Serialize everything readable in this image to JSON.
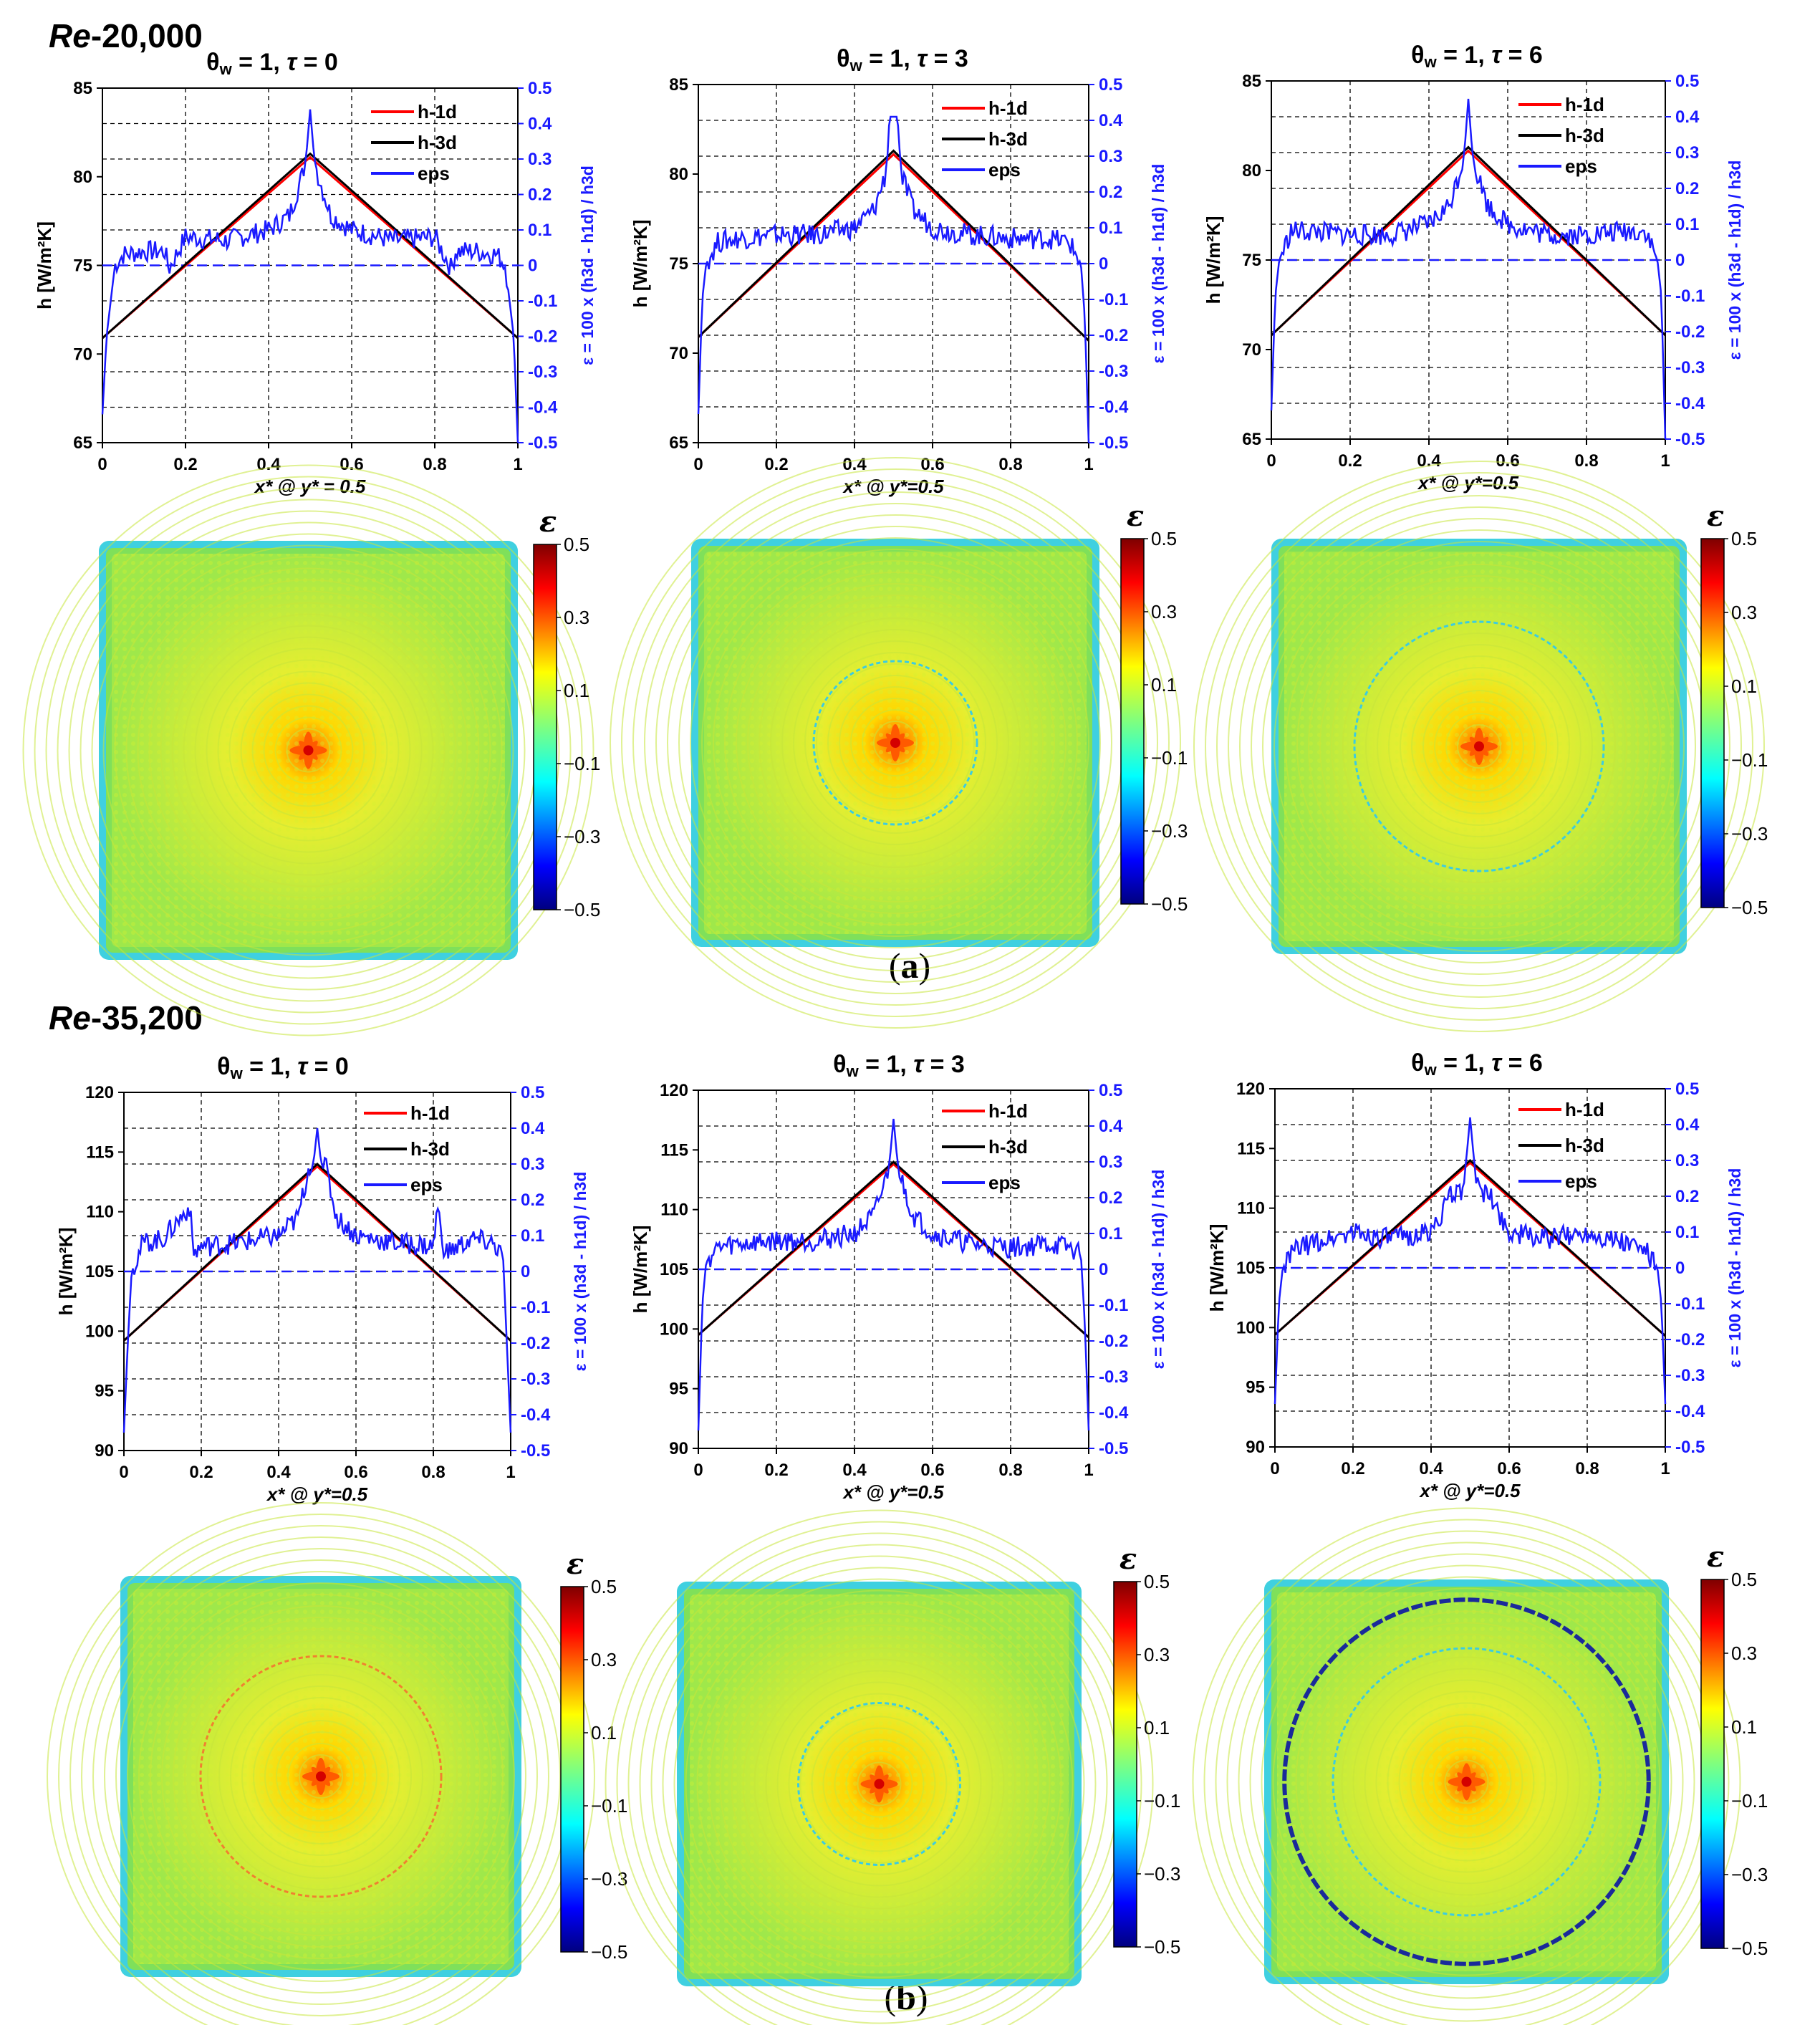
{
  "figure": {
    "section_a": {
      "re_prefix": "Re",
      "re_value": "-20,000",
      "caption_open": "(",
      "caption_letter": "a",
      "caption_close": ")"
    },
    "section_b": {
      "re_prefix": "Re",
      "re_value": "-35,200",
      "caption_open": "(",
      "caption_letter": "b",
      "caption_close": ")"
    }
  },
  "chart_data": [
    {
      "type": "line",
      "section": "a",
      "title": "θw = 1, τ = 0",
      "xlabel": "x* @ y* = 0.5",
      "ylabel": "h [W/m²K]",
      "y2label": "ε = 100 x (h3d - h1d) / h3d",
      "xlim": [
        0,
        1
      ],
      "ylim": [
        65,
        85
      ],
      "y2lim": [
        -0.5,
        0.5
      ],
      "xticks": [
        "0",
        "0.2",
        "0.4",
        "0.6",
        "0.8",
        "1"
      ],
      "yticks": [
        "65",
        "70",
        "75",
        "80",
        "85"
      ],
      "y2ticks": [
        "0.5",
        "0.4",
        "0.3",
        "0.2",
        "0.1",
        "0",
        "-0.1",
        "-0.2",
        "-0.3",
        "-0.4",
        "-0.5"
      ],
      "legend": [
        "h-1d",
        "h-3d",
        "eps"
      ],
      "series": [
        {
          "name": "h-1d",
          "x": [
            0,
            0.5,
            1
          ],
          "values": [
            70.9,
            81.1,
            70.9
          ]
        },
        {
          "name": "h-3d",
          "x": [
            0,
            0.5,
            1
          ],
          "values": [
            70.9,
            81.3,
            70.9
          ]
        },
        {
          "name": "eps",
          "x": [
            0,
            0.01,
            0.03,
            0.05,
            0.1,
            0.15,
            0.16,
            0.2,
            0.3,
            0.4,
            0.45,
            0.48,
            0.49,
            0.5,
            0.51,
            0.52,
            0.55,
            0.6,
            0.7,
            0.8,
            0.84,
            0.85,
            0.9,
            0.95,
            0.97,
            0.99,
            1
          ],
          "values": [
            -0.42,
            -0.2,
            0.0,
            0.03,
            0.04,
            0.04,
            -0.01,
            0.08,
            0.07,
            0.1,
            0.14,
            0.25,
            0.3,
            0.44,
            0.3,
            0.25,
            0.14,
            0.1,
            0.07,
            0.08,
            -0.01,
            0.04,
            0.04,
            0.03,
            0.0,
            -0.2,
            -0.5
          ]
        }
      ]
    },
    {
      "type": "line",
      "section": "a",
      "title": "θw = 1, τ = 3",
      "xlabel": "x* @ y*=0.5",
      "ylabel": "h [W/m²K]",
      "y2label": "ε = 100 x (h3d - h1d) / h3d",
      "xlim": [
        0,
        1
      ],
      "ylim": [
        65,
        85
      ],
      "y2lim": [
        -0.5,
        0.5
      ],
      "xticks": [
        "0",
        "0.2",
        "0.4",
        "0.6",
        "0.8",
        "1"
      ],
      "yticks": [
        "65",
        "70",
        "75",
        "80",
        "85"
      ],
      "y2ticks": [
        "0.5",
        "0.4",
        "0.3",
        "0.2",
        "0.1",
        "0",
        "-0.1",
        "-0.2",
        "-0.3",
        "-0.4",
        "-0.5"
      ],
      "legend": [
        "h-1d",
        "h-3d",
        "eps"
      ],
      "series": [
        {
          "name": "h-1d",
          "x": [
            0,
            0.5,
            1
          ],
          "values": [
            70.9,
            81.1,
            70.7
          ]
        },
        {
          "name": "h-3d",
          "x": [
            0,
            0.5,
            1
          ],
          "values": [
            70.9,
            81.3,
            70.7
          ]
        },
        {
          "name": "eps",
          "x": [
            0,
            0.01,
            0.02,
            0.05,
            0.1,
            0.2,
            0.3,
            0.4,
            0.45,
            0.48,
            0.49,
            0.5,
            0.51,
            0.52,
            0.55,
            0.6,
            0.7,
            0.8,
            0.9,
            0.95,
            0.98,
            0.99,
            1
          ],
          "values": [
            -0.42,
            -0.1,
            0.0,
            0.06,
            0.07,
            0.08,
            0.08,
            0.1,
            0.15,
            0.25,
            0.41,
            0.41,
            0.41,
            0.25,
            0.15,
            0.1,
            0.08,
            0.07,
            0.07,
            0.06,
            0.0,
            -0.15,
            -0.5
          ]
        }
      ]
    },
    {
      "type": "line",
      "section": "a",
      "title": "θw = 1, τ = 6",
      "xlabel": "x* @ y*=0.5",
      "ylabel": "h [W/m²K]",
      "y2label": "ε = 100 x (h3d - h1d) / h3d",
      "xlim": [
        0,
        1
      ],
      "ylim": [
        65,
        85
      ],
      "y2lim": [
        -0.5,
        0.5
      ],
      "xticks": [
        "0",
        "0.2",
        "0.4",
        "0.6",
        "0.8",
        "1"
      ],
      "yticks": [
        "65",
        "70",
        "75",
        "80",
        "85"
      ],
      "y2ticks": [
        "0.5",
        "0.4",
        "0.3",
        "0.2",
        "0.1",
        "0",
        "-0.1",
        "-0.2",
        "-0.3",
        "-0.4",
        "-0.5"
      ],
      "legend": [
        "h-1d",
        "h-3d",
        "eps"
      ],
      "series": [
        {
          "name": "h-1d",
          "x": [
            0,
            0.5,
            1
          ],
          "values": [
            70.8,
            81.1,
            70.8
          ]
        },
        {
          "name": "h-3d",
          "x": [
            0,
            0.5,
            1
          ],
          "values": [
            70.8,
            81.3,
            70.8
          ]
        },
        {
          "name": "eps",
          "x": [
            0,
            0.01,
            0.02,
            0.05,
            0.1,
            0.2,
            0.3,
            0.4,
            0.45,
            0.48,
            0.49,
            0.5,
            0.51,
            0.52,
            0.55,
            0.6,
            0.7,
            0.8,
            0.9,
            0.95,
            0.98,
            0.99,
            1
          ],
          "values": [
            -0.42,
            -0.1,
            0.0,
            0.08,
            0.08,
            0.07,
            0.07,
            0.1,
            0.15,
            0.25,
            0.3,
            0.45,
            0.3,
            0.25,
            0.15,
            0.1,
            0.07,
            0.07,
            0.08,
            0.08,
            0.0,
            -0.1,
            -0.5
          ]
        }
      ]
    },
    {
      "type": "line",
      "section": "b",
      "title": "θw = 1, τ = 0",
      "xlabel": "x* @ y*=0.5",
      "ylabel": "h [W/m²K]",
      "y2label": "ε = 100 x (h3d - h1d) / h3d",
      "xlim": [
        0,
        1
      ],
      "ylim": [
        90,
        120
      ],
      "y2lim": [
        -0.5,
        0.5
      ],
      "xticks": [
        "0",
        "0.2",
        "0.4",
        "0.6",
        "0.8",
        "1"
      ],
      "yticks": [
        "90",
        "95",
        "100",
        "105",
        "110",
        "115",
        "120"
      ],
      "y2ticks": [
        "0.5",
        "0.4",
        "0.3",
        "0.2",
        "0.1",
        "0",
        "-0.1",
        "-0.2",
        "-0.3",
        "-0.4",
        "-0.5"
      ],
      "legend": [
        "h-1d",
        "h-3d",
        "eps"
      ],
      "series": [
        {
          "name": "h-1d",
          "x": [
            0,
            0.5,
            1
          ],
          "values": [
            99.2,
            113.8,
            99.2
          ]
        },
        {
          "name": "h-3d",
          "x": [
            0,
            0.5,
            1
          ],
          "values": [
            99.2,
            114.0,
            99.2
          ]
        },
        {
          "name": "eps",
          "x": [
            0,
            0.01,
            0.02,
            0.05,
            0.1,
            0.17,
            0.18,
            0.2,
            0.3,
            0.4,
            0.45,
            0.48,
            0.49,
            0.5,
            0.51,
            0.52,
            0.55,
            0.6,
            0.7,
            0.8,
            0.81,
            0.83,
            0.9,
            0.95,
            0.98,
            0.99,
            1
          ],
          "values": [
            -0.45,
            -0.2,
            0.0,
            0.08,
            0.09,
            0.18,
            0.05,
            0.07,
            0.08,
            0.1,
            0.15,
            0.3,
            0.3,
            0.4,
            0.3,
            0.3,
            0.15,
            0.1,
            0.08,
            0.07,
            0.18,
            0.05,
            0.09,
            0.08,
            0.05,
            -0.2,
            -0.45
          ]
        }
      ]
    },
    {
      "type": "line",
      "section": "b",
      "title": "θw = 1, τ = 3",
      "xlabel": "x* @ y*=0.5",
      "ylabel": "h [W/m²K]",
      "y2label": "ε = 100 x (h3d - h1d) / h3d",
      "xlim": [
        0,
        1
      ],
      "ylim": [
        90,
        120
      ],
      "y2lim": [
        -0.5,
        0.5
      ],
      "xticks": [
        "0",
        "0.2",
        "0.4",
        "0.6",
        "0.8",
        "1"
      ],
      "yticks": [
        "90",
        "95",
        "100",
        "105",
        "110",
        "115",
        "120"
      ],
      "y2ticks": [
        "0.5",
        "0.4",
        "0.3",
        "0.2",
        "0.1",
        "0",
        "-0.1",
        "-0.2",
        "-0.3",
        "-0.4",
        "-0.5"
      ],
      "legend": [
        "h-1d",
        "h-3d",
        "eps"
      ],
      "series": [
        {
          "name": "h-1d",
          "x": [
            0,
            0.5,
            1
          ],
          "values": [
            99.5,
            113.8,
            99.3
          ]
        },
        {
          "name": "h-3d",
          "x": [
            0,
            0.5,
            1
          ],
          "values": [
            99.5,
            114.0,
            99.3
          ]
        },
        {
          "name": "eps",
          "x": [
            0,
            0.01,
            0.02,
            0.05,
            0.1,
            0.2,
            0.3,
            0.4,
            0.45,
            0.48,
            0.49,
            0.5,
            0.51,
            0.52,
            0.55,
            0.6,
            0.7,
            0.8,
            0.9,
            0.95,
            0.98,
            0.99,
            1
          ],
          "values": [
            -0.45,
            -0.1,
            0.02,
            0.06,
            0.07,
            0.08,
            0.08,
            0.1,
            0.15,
            0.25,
            0.3,
            0.42,
            0.3,
            0.25,
            0.15,
            0.1,
            0.07,
            0.06,
            0.07,
            0.06,
            0.04,
            -0.15,
            -0.45
          ]
        }
      ]
    },
    {
      "type": "line",
      "section": "b",
      "title": "θw = 1, τ = 6",
      "xlabel": "x* @ y*=0.5",
      "ylabel": "h [W/m²K]",
      "y2label": "ε = 100 x (h3d - h1d) / h3d",
      "xlim": [
        0,
        1
      ],
      "ylim": [
        90,
        120
      ],
      "y2lim": [
        -0.5,
        0.5
      ],
      "xticks": [
        "0",
        "0.2",
        "0.4",
        "0.6",
        "0.8",
        "1"
      ],
      "yticks": [
        "90",
        "95",
        "100",
        "105",
        "110",
        "115",
        "120"
      ],
      "y2ticks": [
        "0.5",
        "0.4",
        "0.3",
        "0.2",
        "0.1",
        "0",
        "-0.1",
        "-0.2",
        "-0.3",
        "-0.4",
        "-0.5"
      ],
      "legend": [
        "h-1d",
        "h-3d",
        "eps"
      ],
      "series": [
        {
          "name": "h-1d",
          "x": [
            0,
            0.5,
            1
          ],
          "values": [
            99.4,
            113.8,
            99.3
          ]
        },
        {
          "name": "h-3d",
          "x": [
            0,
            0.5,
            1
          ],
          "values": [
            99.4,
            114.0,
            99.3
          ]
        },
        {
          "name": "eps",
          "x": [
            0,
            0.01,
            0.02,
            0.05,
            0.1,
            0.2,
            0.3,
            0.4,
            0.45,
            0.48,
            0.49,
            0.5,
            0.51,
            0.52,
            0.55,
            0.6,
            0.7,
            0.8,
            0.9,
            0.95,
            0.98,
            0.99,
            1
          ],
          "values": [
            -0.38,
            -0.1,
            0.0,
            0.05,
            0.07,
            0.1,
            0.08,
            0.1,
            0.2,
            0.22,
            0.3,
            0.42,
            0.3,
            0.22,
            0.2,
            0.1,
            0.08,
            0.1,
            0.07,
            0.05,
            0.0,
            -0.1,
            -0.38
          ]
        }
      ]
    },
    {
      "type": "heatmap",
      "section": "a",
      "case": "τ = 0",
      "colorbar_title": "ε",
      "colorbar_ticks": [
        "0.5",
        "0.3",
        "0.1",
        "−0.1",
        "−0.3",
        "−0.5"
      ],
      "range": [
        -0.5,
        0.5
      ],
      "ring": "none"
    },
    {
      "type": "heatmap",
      "section": "a",
      "case": "τ = 3",
      "colorbar_title": "ε",
      "colorbar_ticks": [
        "0.5",
        "0.3",
        "0.1",
        "−0.1",
        "−0.3",
        "−0.5"
      ],
      "range": [
        -0.5,
        0.5
      ],
      "ring": "cyan",
      "ring_radius": 0.2
    },
    {
      "type": "heatmap",
      "section": "a",
      "case": "τ = 6",
      "colorbar_title": "ε",
      "colorbar_ticks": [
        "0.5",
        "0.3",
        "0.1",
        "−0.1",
        "−0.3",
        "−0.5"
      ],
      "range": [
        -0.5,
        0.5
      ],
      "ring": "cyan",
      "ring_radius": 0.3
    },
    {
      "type": "heatmap",
      "section": "b",
      "case": "τ = 0",
      "colorbar_title": "ε",
      "colorbar_ticks": [
        "0.5",
        "0.3",
        "0.1",
        "−0.1",
        "−0.3",
        "−0.5"
      ],
      "range": [
        -0.5,
        0.5
      ],
      "ring": "orange",
      "ring_radius": 0.3
    },
    {
      "type": "heatmap",
      "section": "b",
      "case": "τ = 3",
      "colorbar_title": "ε",
      "colorbar_ticks": [
        "0.5",
        "0.3",
        "0.1",
        "−0.1",
        "−0.3",
        "−0.5"
      ],
      "range": [
        -0.5,
        0.5
      ],
      "ring": "cyan",
      "ring_radius": 0.2
    },
    {
      "type": "heatmap",
      "section": "b",
      "case": "τ = 6",
      "colorbar_title": "ε",
      "colorbar_ticks": [
        "0.5",
        "0.3",
        "0.1",
        "−0.1",
        "−0.3",
        "−0.5"
      ],
      "range": [
        -0.5,
        0.5
      ],
      "ring": "darkblue",
      "ring_radius": 0.45,
      "ring2": "cyan",
      "ring2_radius": 0.33
    },
    {
      "type": "colors",
      "h1d": "#ff0000",
      "h3d": "#000000",
      "eps": "#1a1aff"
    }
  ]
}
